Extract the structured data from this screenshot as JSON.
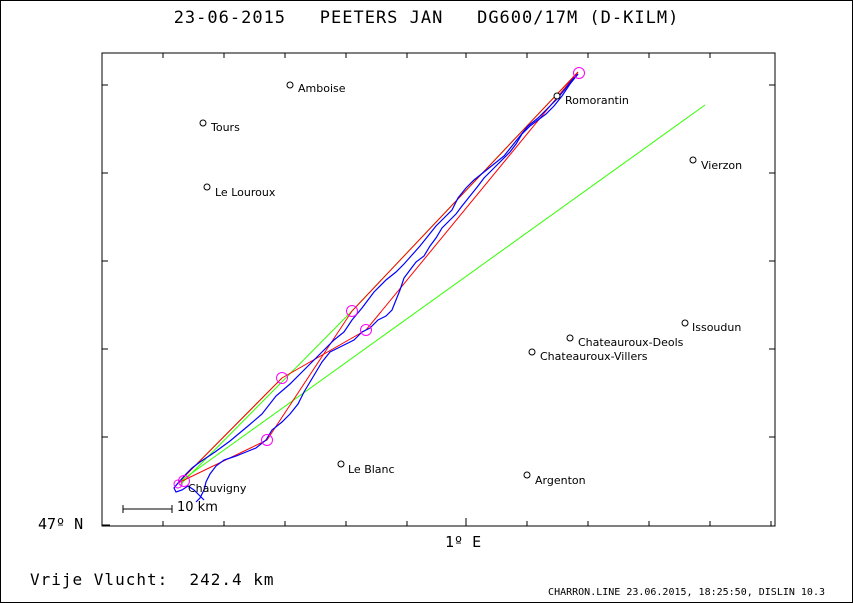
{
  "title": {
    "date": "23-06-2015",
    "pilot": "PEETERS JAN",
    "glider": "DG600/17M (D-KILM)"
  },
  "axes": {
    "y_label": "47º N",
    "x_label": "1º E"
  },
  "scale_bar": {
    "label": "10 km"
  },
  "free_flight": {
    "label": "Vrije Vlucht:",
    "distance": "242.4 km"
  },
  "footer": "CHARRON.LINE 23.06.2015, 18:25:50, DISLIN 10.3",
  "colors": {
    "track": "#0000ff",
    "task_line": "#ff0000",
    "sector_line": "#33ff00",
    "turnpoint_circle": "#ff00ff",
    "frame": "#000000"
  },
  "towns": [
    {
      "name": "Amboise"
    },
    {
      "name": "Tours"
    },
    {
      "name": "Le Louroux"
    },
    {
      "name": "Romorantin"
    },
    {
      "name": "Vierzon"
    },
    {
      "name": "Issoudun"
    },
    {
      "name": "Chateauroux-Deols"
    },
    {
      "name": "Chateauroux-Villers"
    },
    {
      "name": "Le Blanc"
    },
    {
      "name": "Argenton"
    },
    {
      "name": "Chauvigny"
    }
  ]
}
